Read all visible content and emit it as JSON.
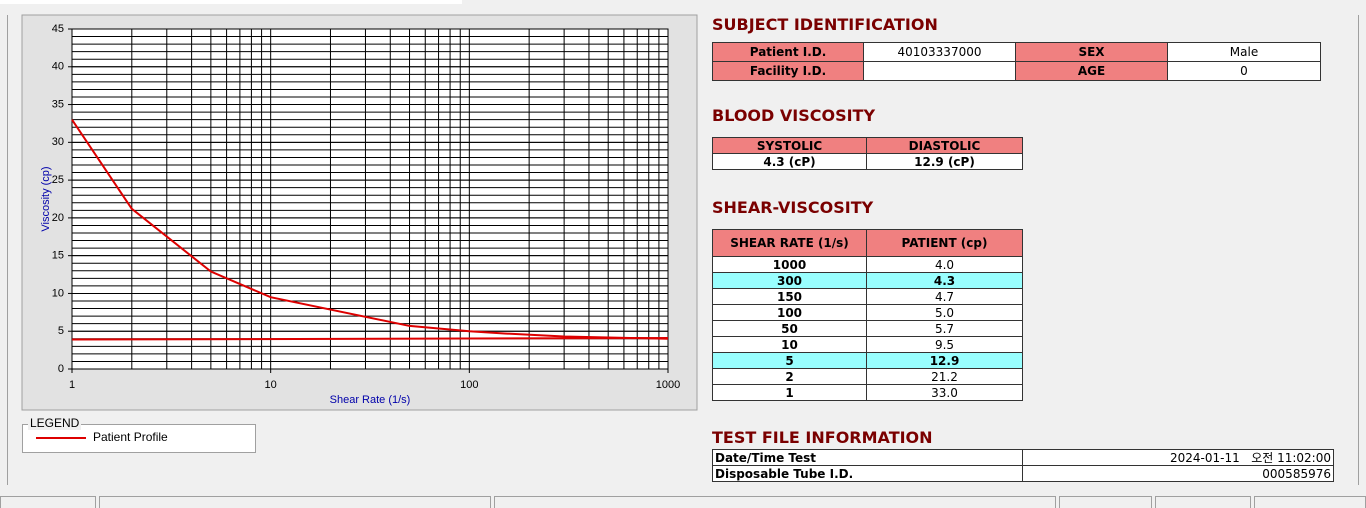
{
  "chart_data": {
    "type": "line",
    "x_scale": "log",
    "xlabel": "Shear Rate (1/s)",
    "ylabel": "Viscosity (cp)",
    "xlim": [
      1,
      1000
    ],
    "xticks": [
      1,
      10,
      100,
      1000
    ],
    "ylim": [
      0,
      45
    ],
    "yticks": [
      0,
      5,
      10,
      15,
      20,
      25,
      30,
      35,
      40,
      45
    ],
    "grid": true,
    "minor_grid": true,
    "legend_title": "LEGEND",
    "series": [
      {
        "name": "Patient Profile",
        "color": "#dd0000",
        "x": [
          1,
          2,
          5,
          10,
          50,
          100,
          150,
          300,
          1000
        ],
        "values": [
          33.0,
          21.2,
          12.9,
          9.5,
          5.7,
          5.0,
          4.7,
          4.3,
          4.0
        ]
      },
      {
        "color": "#dd0000",
        "x": [
          1,
          1000
        ],
        "values": [
          3.9,
          4.1
        ]
      }
    ]
  },
  "subject_identification": {
    "title": "SUBJECT IDENTIFICATION",
    "rows": [
      [
        {
          "label": "Patient I.D.",
          "value": "40103337000"
        },
        {
          "label": "SEX",
          "value": "Male"
        }
      ],
      [
        {
          "label": "Facility I.D."
        },
        {
          "label": "AGE",
          "value": "0"
        }
      ]
    ]
  },
  "blood_viscosity": {
    "title": "BLOOD VISCOSITY",
    "headers": [
      "SYSTOLIC",
      "DIASTOLIC"
    ],
    "values": [
      "4.3 (cP)",
      "12.9 (cP)"
    ]
  },
  "shear_viscosity": {
    "title": "SHEAR-VISCOSITY",
    "headers": [
      "SHEAR RATE (1/s)",
      "PATIENT (cp)"
    ],
    "rows": [
      {
        "cells": [
          "1000",
          "4.0"
        ]
      },
      {
        "cells": [
          "300",
          "4.3"
        ],
        "highlight": true
      },
      {
        "cells": [
          "150",
          "4.7"
        ]
      },
      {
        "cells": [
          "100",
          "5.0"
        ]
      },
      {
        "cells": [
          "50",
          "5.7"
        ]
      },
      {
        "cells": [
          "10",
          "9.5"
        ]
      },
      {
        "cells": [
          "5",
          "12.9"
        ],
        "highlight": true
      },
      {
        "cells": [
          "2",
          "21.2"
        ]
      },
      {
        "cells": [
          "1",
          "33.0"
        ]
      }
    ]
  },
  "test_file_information": {
    "title": "TEST FILE INFORMATION",
    "rows": [
      [
        "Date/Time Test",
        "2024-01-11   오전 11:02:00"
      ],
      [
        "Disposable Tube I.D.",
        "000585976"
      ]
    ]
  }
}
